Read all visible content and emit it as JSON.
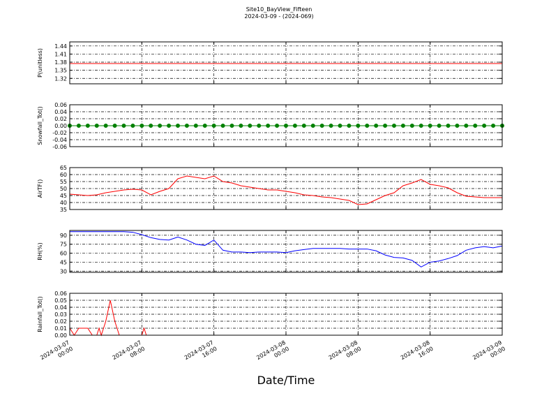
{
  "chart_data": [
    {
      "type": "line",
      "title": "Site10_BayView_Fifteen",
      "subtitle": "2024-03-09 - (2024-069)",
      "ylabel": "P(unitless)",
      "color": "#ff0000",
      "marker": false,
      "grid": true,
      "xlim": [
        "2024-03-07 00:00",
        "2024-03-09 00:00"
      ],
      "ylim": [
        1.3,
        1.455
      ],
      "yticks": [
        1.32,
        1.35,
        1.38,
        1.41,
        1.44
      ],
      "x": [
        "2024-03-07 00:00",
        "2024-03-07 01:00",
        "2024-03-07 02:00",
        "2024-03-07 03:00",
        "2024-03-07 04:00",
        "2024-03-07 05:00",
        "2024-03-07 06:00",
        "2024-03-07 07:00",
        "2024-03-07 08:00",
        "2024-03-07 09:00",
        "2024-03-07 10:00",
        "2024-03-07 11:00",
        "2024-03-07 12:00",
        "2024-03-07 13:00",
        "2024-03-07 14:00",
        "2024-03-07 15:00",
        "2024-03-07 16:00",
        "2024-03-07 17:00",
        "2024-03-07 18:00",
        "2024-03-07 19:00",
        "2024-03-07 20:00",
        "2024-03-07 21:00",
        "2024-03-07 22:00",
        "2024-03-07 23:00",
        "2024-03-08 00:00",
        "2024-03-08 01:00",
        "2024-03-08 02:00",
        "2024-03-08 03:00",
        "2024-03-08 04:00",
        "2024-03-08 05:00",
        "2024-03-08 06:00",
        "2024-03-08 07:00",
        "2024-03-08 08:00",
        "2024-03-08 09:00",
        "2024-03-08 10:00",
        "2024-03-08 11:00",
        "2024-03-08 12:00",
        "2024-03-08 13:00",
        "2024-03-08 14:00",
        "2024-03-08 15:00",
        "2024-03-08 16:00",
        "2024-03-08 17:00",
        "2024-03-08 18:00",
        "2024-03-08 19:00",
        "2024-03-08 20:00",
        "2024-03-08 21:00",
        "2024-03-08 22:00",
        "2024-03-08 23:00",
        "2024-03-09 00:00"
      ],
      "values": [
        1.375,
        1.375,
        1.375,
        1.375,
        1.375,
        1.375,
        1.375,
        1.375,
        1.375,
        1.375,
        1.375,
        1.375,
        1.375,
        1.375,
        1.375,
        1.375,
        1.375,
        1.375,
        1.375,
        1.375,
        1.375,
        1.375,
        1.375,
        1.375,
        1.375,
        1.375,
        1.375,
        1.375,
        1.375,
        1.375,
        1.375,
        1.375,
        1.375,
        1.375,
        1.375,
        1.375,
        1.375,
        1.375,
        1.375,
        1.375,
        1.375,
        1.375,
        1.375,
        1.375,
        1.375,
        1.375,
        1.375,
        1.375,
        1.375
      ]
    },
    {
      "type": "line",
      "ylabel": "Snowfall_Tot()",
      "color": "#008000",
      "marker": true,
      "grid": true,
      "xlim": [
        "2024-03-07 00:00",
        "2024-03-09 00:00"
      ],
      "ylim": [
        -0.06,
        0.06
      ],
      "yticks": [
        -0.06,
        -0.04,
        -0.02,
        {
          "value": 0,
          "label": "0.00"
        },
        0.02,
        0.04,
        0.06
      ],
      "x": [
        "2024-03-07 00:00",
        "2024-03-07 01:00",
        "2024-03-07 02:00",
        "2024-03-07 03:00",
        "2024-03-07 04:00",
        "2024-03-07 05:00",
        "2024-03-07 06:00",
        "2024-03-07 07:00",
        "2024-03-07 08:00",
        "2024-03-07 09:00",
        "2024-03-07 10:00",
        "2024-03-07 11:00",
        "2024-03-07 12:00",
        "2024-03-07 13:00",
        "2024-03-07 14:00",
        "2024-03-07 15:00",
        "2024-03-07 16:00",
        "2024-03-07 17:00",
        "2024-03-07 18:00",
        "2024-03-07 19:00",
        "2024-03-07 20:00",
        "2024-03-07 21:00",
        "2024-03-07 22:00",
        "2024-03-07 23:00",
        "2024-03-08 00:00",
        "2024-03-08 01:00",
        "2024-03-08 02:00",
        "2024-03-08 03:00",
        "2024-03-08 04:00",
        "2024-03-08 05:00",
        "2024-03-08 06:00",
        "2024-03-08 07:00",
        "2024-03-08 08:00",
        "2024-03-08 09:00",
        "2024-03-08 10:00",
        "2024-03-08 11:00",
        "2024-03-08 12:00",
        "2024-03-08 13:00",
        "2024-03-08 14:00",
        "2024-03-08 15:00",
        "2024-03-08 16:00",
        "2024-03-08 17:00",
        "2024-03-08 18:00",
        "2024-03-08 19:00",
        "2024-03-08 20:00",
        "2024-03-08 21:00",
        "2024-03-08 22:00",
        "2024-03-08 23:00",
        "2024-03-09 00:00"
      ],
      "values": [
        0,
        0,
        0,
        0,
        0,
        0,
        0,
        0,
        0,
        0,
        0,
        0,
        0,
        0,
        0,
        0,
        0,
        0,
        0,
        0,
        0,
        0,
        0,
        0,
        0,
        0,
        0,
        0,
        0,
        0,
        0,
        0,
        0,
        0,
        0,
        0,
        0,
        0,
        0,
        0,
        0,
        0,
        0,
        0,
        0,
        0,
        0,
        0,
        0
      ]
    },
    {
      "type": "line",
      "ylabel": "AirTF()",
      "color": "#ff0000",
      "marker": false,
      "grid": true,
      "xlim": [
        "2024-03-07 00:00",
        "2024-03-09 00:00"
      ],
      "ylim": [
        35,
        65
      ],
      "yticks": [
        35,
        40,
        45,
        50,
        55,
        60,
        65
      ],
      "x": [
        "2024-03-07 00:00",
        "2024-03-07 01:00",
        "2024-03-07 02:00",
        "2024-03-07 03:00",
        "2024-03-07 04:00",
        "2024-03-07 05:00",
        "2024-03-07 06:00",
        "2024-03-07 07:00",
        "2024-03-07 08:00",
        "2024-03-07 09:00",
        "2024-03-07 10:00",
        "2024-03-07 11:00",
        "2024-03-07 12:00",
        "2024-03-07 13:00",
        "2024-03-07 14:00",
        "2024-03-07 15:00",
        "2024-03-07 16:00",
        "2024-03-07 17:00",
        "2024-03-07 18:00",
        "2024-03-07 19:00",
        "2024-03-07 20:00",
        "2024-03-07 21:00",
        "2024-03-07 22:00",
        "2024-03-07 23:00",
        "2024-03-08 00:00",
        "2024-03-08 01:00",
        "2024-03-08 02:00",
        "2024-03-08 03:00",
        "2024-03-08 04:00",
        "2024-03-08 05:00",
        "2024-03-08 06:00",
        "2024-03-08 07:00",
        "2024-03-08 08:00",
        "2024-03-08 09:00",
        "2024-03-08 10:00",
        "2024-03-08 11:00",
        "2024-03-08 12:00",
        "2024-03-08 13:00",
        "2024-03-08 14:00",
        "2024-03-08 15:00",
        "2024-03-08 16:00",
        "2024-03-08 17:00",
        "2024-03-08 18:00",
        "2024-03-08 19:00",
        "2024-03-08 20:00",
        "2024-03-08 21:00",
        "2024-03-08 22:00",
        "2024-03-08 23:00",
        "2024-03-09 00:00"
      ],
      "values": [
        46,
        45.5,
        45,
        45.5,
        47,
        48,
        49,
        49.5,
        49,
        45.5,
        48,
        50,
        57,
        59,
        58,
        57,
        59,
        55,
        54,
        52,
        51,
        50,
        49,
        49,
        48,
        47,
        45.5,
        45,
        44,
        43.5,
        42.5,
        41.5,
        38.5,
        39,
        42,
        45,
        47,
        52,
        54,
        56.5,
        53,
        52,
        50.5,
        47,
        44.5,
        44,
        43.5,
        43.5,
        43.5
      ]
    },
    {
      "type": "line",
      "ylabel": "RH(%)",
      "color": "#0000ff",
      "marker": false,
      "grid": true,
      "xlim": [
        "2024-03-07 00:00",
        "2024-03-09 00:00"
      ],
      "ylim": [
        28,
        98
      ],
      "yticks": [
        30,
        45,
        60,
        75,
        90
      ],
      "x": [
        "2024-03-07 00:00",
        "2024-03-07 01:00",
        "2024-03-07 02:00",
        "2024-03-07 03:00",
        "2024-03-07 04:00",
        "2024-03-07 05:00",
        "2024-03-07 06:00",
        "2024-03-07 07:00",
        "2024-03-07 08:00",
        "2024-03-07 09:00",
        "2024-03-07 10:00",
        "2024-03-07 11:00",
        "2024-03-07 12:00",
        "2024-03-07 13:00",
        "2024-03-07 14:00",
        "2024-03-07 15:00",
        "2024-03-07 16:00",
        "2024-03-07 17:00",
        "2024-03-07 18:00",
        "2024-03-07 19:00",
        "2024-03-07 20:00",
        "2024-03-07 21:00",
        "2024-03-07 22:00",
        "2024-03-07 23:00",
        "2024-03-08 00:00",
        "2024-03-08 01:00",
        "2024-03-08 02:00",
        "2024-03-08 03:00",
        "2024-03-08 04:00",
        "2024-03-08 05:00",
        "2024-03-08 06:00",
        "2024-03-08 07:00",
        "2024-03-08 08:00",
        "2024-03-08 09:00",
        "2024-03-08 10:00",
        "2024-03-08 11:00",
        "2024-03-08 12:00",
        "2024-03-08 13:00",
        "2024-03-08 14:00",
        "2024-03-08 15:00",
        "2024-03-08 16:00",
        "2024-03-08 17:00",
        "2024-03-08 18:00",
        "2024-03-08 19:00",
        "2024-03-08 20:00",
        "2024-03-08 21:00",
        "2024-03-08 22:00",
        "2024-03-08 23:00",
        "2024-03-09 00:00"
      ],
      "values": [
        96,
        96,
        96,
        96,
        96,
        96,
        96,
        95,
        91,
        86,
        83,
        82,
        87,
        82,
        75,
        73,
        82,
        65,
        62,
        62,
        61,
        62,
        62,
        62,
        61,
        64,
        66,
        68,
        68,
        68,
        68,
        67,
        67,
        67,
        64,
        57,
        53,
        52,
        48,
        37,
        45,
        47,
        51,
        56,
        65,
        69,
        71,
        69,
        72
      ]
    },
    {
      "type": "line",
      "ylabel": "Rainfall_Tot()",
      "xlabel": "Date/Time",
      "color": "#ff0000",
      "marker": false,
      "grid": true,
      "xlim": [
        "2024-03-07 00:00",
        "2024-03-09 00:00"
      ],
      "ylim": [
        0,
        0.06
      ],
      "yticks": [
        {
          "value": 0,
          "label": "0.00"
        },
        0.01,
        0.02,
        0.03,
        0.04,
        0.05,
        0.06
      ],
      "xticks": [
        "2024-03-07 00:00",
        "2024-03-07 08:00",
        "2024-03-07 16:00",
        "2024-03-08 00:00",
        "2024-03-08 08:00",
        "2024-03-08 16:00",
        "2024-03-09 00:00"
      ],
      "x": [
        "2024-03-07 00:00",
        "2024-03-07 00:30",
        "2024-03-07 01:00",
        "2024-03-07 02:00",
        "2024-03-07 02:30",
        "2024-03-07 03:00",
        "2024-03-07 03:15",
        "2024-03-07 03:30",
        "2024-03-07 04:00",
        "2024-03-07 04:30",
        "2024-03-07 05:00",
        "2024-03-07 05:30",
        "2024-03-07 08:00",
        "2024-03-07 08:15",
        "2024-03-07 08:30",
        "2024-03-09 00:00"
      ],
      "values": [
        0.01,
        0,
        0.01,
        0.01,
        0,
        0,
        0.01,
        0,
        0.02,
        0.05,
        0.02,
        0,
        0,
        0.01,
        0,
        0
      ]
    }
  ]
}
